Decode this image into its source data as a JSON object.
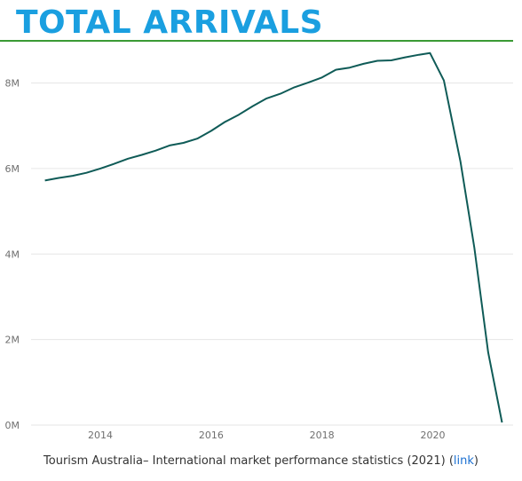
{
  "title": "TOTAL ARRIVALS",
  "source": {
    "text": "Tourism Australia–  International market performance statistics (2021) (",
    "link_label": "link",
    "close": ")"
  },
  "colors": {
    "title": "#1a9fe0",
    "rule": "#3a9a35",
    "line": "#0f5b57",
    "grid": "#e6e6e6",
    "link": "#1a6fd1"
  },
  "chart_data": {
    "type": "line",
    "title": "",
    "xlabel": "",
    "ylabel": "",
    "xlim": [
      2012.75,
      2021.45
    ],
    "ylim": [
      0,
      8800000
    ],
    "x_ticks": [
      2014,
      2016,
      2018,
      2020
    ],
    "x_tick_labels": [
      "2014",
      "2016",
      "2018",
      "2020"
    ],
    "y_ticks": [
      0,
      2000000,
      4000000,
      6000000,
      8000000
    ],
    "y_tick_labels": [
      "0M",
      "2M",
      "4M",
      "6M",
      "8M"
    ],
    "grid": "horizontal",
    "legend": "none",
    "series": [
      {
        "x": [
          2013.0,
          2013.25,
          2013.5,
          2013.75,
          2014.0,
          2014.25,
          2014.5,
          2014.75,
          2015.0,
          2015.25,
          2015.5,
          2015.75,
          2016.0,
          2016.25,
          2016.5,
          2016.75,
          2017.0,
          2017.25,
          2017.5,
          2017.75,
          2018.0,
          2018.25,
          2018.5,
          2018.75,
          2019.0,
          2019.25,
          2019.5,
          2019.75,
          2019.95,
          2020.2,
          2020.5,
          2020.75,
          2021.0,
          2021.25
        ],
        "y": [
          5720000,
          5780000,
          5830000,
          5900000,
          6000000,
          6110000,
          6230000,
          6320000,
          6420000,
          6540000,
          6600000,
          6700000,
          6880000,
          7090000,
          7260000,
          7460000,
          7640000,
          7750000,
          7900000,
          8010000,
          8130000,
          8310000,
          8360000,
          8450000,
          8520000,
          8530000,
          8600000,
          8660000,
          8700000,
          8060000,
          6160000,
          4150000,
          1700000,
          60000
        ]
      }
    ]
  }
}
